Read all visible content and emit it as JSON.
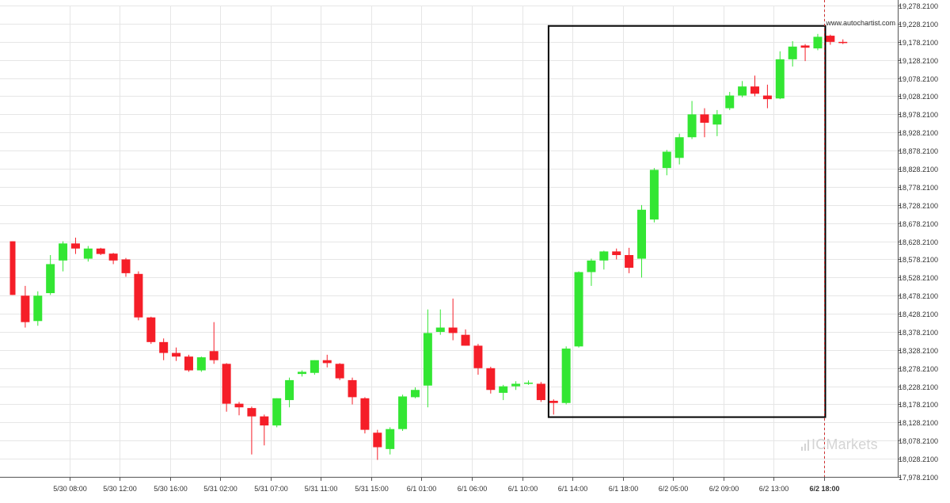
{
  "chart_data": {
    "type": "candlestick",
    "source_label": "www.autochartist.com",
    "brand_watermark": "ICMarkets",
    "colors": {
      "up": "#33e633",
      "down": "#f51e28",
      "pattern_box": "#000000",
      "grid": "#e6e6e6"
    },
    "grid": true,
    "y_axis": {
      "position": "right",
      "min": 17978.21,
      "max": 19278.21,
      "ticks": [
        "19,278.2100",
        "19,228.2100",
        "19,178.2100",
        "19,128.2100",
        "19,078.2100",
        "19,028.2100",
        "18,978.2100",
        "18,928.2100",
        "18,878.2100",
        "18,828.2100",
        "18,778.2100",
        "18,728.2100",
        "18,678.2100",
        "18,628.2100",
        "18,578.2100",
        "18,528.2100",
        "18,478.2100",
        "18,428.2100",
        "18,378.2100",
        "18,328.2100",
        "18,278.2100",
        "18,228.2100",
        "18,178.2100",
        "18,128.2100",
        "18,078.2100",
        "18,028.2100",
        "17,978.2100"
      ],
      "tick_values": [
        19278.21,
        19228.21,
        19178.21,
        19128.21,
        19078.21,
        19028.21,
        18978.21,
        18928.21,
        18878.21,
        18828.21,
        18778.21,
        18728.21,
        18678.21,
        18628.21,
        18578.21,
        18528.21,
        18478.21,
        18428.21,
        18378.21,
        18328.21,
        18278.21,
        18228.21,
        18178.21,
        18128.21,
        18078.21,
        18028.21,
        17978.21
      ]
    },
    "x_axis": {
      "ticks": [
        {
          "label": "5/30 08:00",
          "index": 4.5
        },
        {
          "label": "5/30 12:00",
          "index": 8.5
        },
        {
          "label": "5/30 16:00",
          "index": 12.5
        },
        {
          "label": "5/31 02:00",
          "index": 16.5
        },
        {
          "label": "5/31 07:00",
          "index": 20.5
        },
        {
          "label": "5/31 11:00",
          "index": 24.5
        },
        {
          "label": "5/31 15:00",
          "index": 28.5
        },
        {
          "label": "6/1 01:00",
          "index": 32.5
        },
        {
          "label": "6/1 06:00",
          "index": 36.5
        },
        {
          "label": "6/1 10:00",
          "index": 40.5
        },
        {
          "label": "6/1 14:00",
          "index": 44.5
        },
        {
          "label": "6/1 18:00",
          "index": 48.5
        },
        {
          "label": "6/2 05:00",
          "index": 52.5
        },
        {
          "label": "6/2 09:00",
          "index": 56.5
        },
        {
          "label": "6/2 13:00",
          "index": 60.5
        },
        {
          "label": "6/2 18:00",
          "index": 64.5,
          "bold": true
        }
      ]
    },
    "candles": [
      {
        "o": 18628,
        "h": 18628,
        "l": 18480,
        "c": 18480
      },
      {
        "o": 18478,
        "h": 18505,
        "l": 18390,
        "c": 18405
      },
      {
        "o": 18408,
        "h": 18490,
        "l": 18395,
        "c": 18478
      },
      {
        "o": 18485,
        "h": 18590,
        "l": 18480,
        "c": 18565
      },
      {
        "o": 18575,
        "h": 18628,
        "l": 18545,
        "c": 18622
      },
      {
        "o": 18622,
        "h": 18638,
        "l": 18593,
        "c": 18608
      },
      {
        "o": 18580,
        "h": 18615,
        "l": 18572,
        "c": 18608
      },
      {
        "o": 18608,
        "h": 18610,
        "l": 18590,
        "c": 18593
      },
      {
        "o": 18594,
        "h": 18596,
        "l": 18565,
        "c": 18575
      },
      {
        "o": 18578,
        "h": 18582,
        "l": 18530,
        "c": 18540
      },
      {
        "o": 18538,
        "h": 18545,
        "l": 18410,
        "c": 18418
      },
      {
        "o": 18418,
        "h": 18420,
        "l": 18345,
        "c": 18350
      },
      {
        "o": 18350,
        "h": 18360,
        "l": 18300,
        "c": 18320
      },
      {
        "o": 18320,
        "h": 18335,
        "l": 18298,
        "c": 18310
      },
      {
        "o": 18310,
        "h": 18315,
        "l": 18268,
        "c": 18272
      },
      {
        "o": 18272,
        "h": 18310,
        "l": 18268,
        "c": 18308
      },
      {
        "o": 18325,
        "h": 18405,
        "l": 18290,
        "c": 18300
      },
      {
        "o": 18290,
        "h": 18292,
        "l": 18158,
        "c": 18180
      },
      {
        "o": 18180,
        "h": 18185,
        "l": 18148,
        "c": 18170
      },
      {
        "o": 18168,
        "h": 18172,
        "l": 18040,
        "c": 18145
      },
      {
        "o": 18145,
        "h": 18150,
        "l": 18065,
        "c": 18120
      },
      {
        "o": 18120,
        "h": 18195,
        "l": 18115,
        "c": 18195
      },
      {
        "o": 18190,
        "h": 18252,
        "l": 18170,
        "c": 18245
      },
      {
        "o": 18262,
        "h": 18272,
        "l": 18255,
        "c": 18268
      },
      {
        "o": 18265,
        "h": 18300,
        "l": 18260,
        "c": 18300
      },
      {
        "o": 18300,
        "h": 18315,
        "l": 18280,
        "c": 18292
      },
      {
        "o": 18290,
        "h": 18292,
        "l": 18245,
        "c": 18250
      },
      {
        "o": 18245,
        "h": 18252,
        "l": 18178,
        "c": 18198
      },
      {
        "o": 18195,
        "h": 18198,
        "l": 18098,
        "c": 18108
      },
      {
        "o": 18100,
        "h": 18108,
        "l": 18025,
        "c": 18060
      },
      {
        "o": 18055,
        "h": 18115,
        "l": 18040,
        "c": 18110
      },
      {
        "o": 18110,
        "h": 18205,
        "l": 18105,
        "c": 18200
      },
      {
        "o": 18198,
        "h": 18225,
        "l": 18195,
        "c": 18218
      },
      {
        "o": 18230,
        "h": 18440,
        "l": 18170,
        "c": 18375
      },
      {
        "o": 18378,
        "h": 18440,
        "l": 18370,
        "c": 18390
      },
      {
        "o": 18390,
        "h": 18470,
        "l": 18355,
        "c": 18375
      },
      {
        "o": 18370,
        "h": 18385,
        "l": 18340,
        "c": 18340
      },
      {
        "o": 18340,
        "h": 18345,
        "l": 18260,
        "c": 18278
      },
      {
        "o": 18278,
        "h": 18282,
        "l": 18208,
        "c": 18218
      },
      {
        "o": 18210,
        "h": 18232,
        "l": 18190,
        "c": 18228
      },
      {
        "o": 18228,
        "h": 18242,
        "l": 18218,
        "c": 18235
      },
      {
        "o": 18236,
        "h": 18244,
        "l": 18232,
        "c": 18238
      },
      {
        "o": 18235,
        "h": 18240,
        "l": 18185,
        "c": 18190
      },
      {
        "o": 18188,
        "h": 18192,
        "l": 18150,
        "c": 18182
      },
      {
        "o": 18182,
        "h": 18338,
        "l": 18178,
        "c": 18332
      },
      {
        "o": 18338,
        "h": 18545,
        "l": 18335,
        "c": 18543
      },
      {
        "o": 18543,
        "h": 18580,
        "l": 18505,
        "c": 18575
      },
      {
        "o": 18575,
        "h": 18602,
        "l": 18550,
        "c": 18600
      },
      {
        "o": 18600,
        "h": 18608,
        "l": 18578,
        "c": 18590
      },
      {
        "o": 18590,
        "h": 18610,
        "l": 18540,
        "c": 18555
      },
      {
        "o": 18580,
        "h": 18728,
        "l": 18528,
        "c": 18715
      },
      {
        "o": 18688,
        "h": 18830,
        "l": 18680,
        "c": 18825
      },
      {
        "o": 18830,
        "h": 18880,
        "l": 18810,
        "c": 18875
      },
      {
        "o": 18858,
        "h": 18925,
        "l": 18840,
        "c": 18915
      },
      {
        "o": 18915,
        "h": 19015,
        "l": 18910,
        "c": 18978
      },
      {
        "o": 18978,
        "h": 18995,
        "l": 18915,
        "c": 18955
      },
      {
        "o": 18950,
        "h": 18990,
        "l": 18918,
        "c": 18978
      },
      {
        "o": 18995,
        "h": 19040,
        "l": 18990,
        "c": 19030
      },
      {
        "o": 19030,
        "h": 19070,
        "l": 19025,
        "c": 19055
      },
      {
        "o": 19055,
        "h": 19085,
        "l": 19028,
        "c": 19035
      },
      {
        "o": 19030,
        "h": 19060,
        "l": 18995,
        "c": 19020
      },
      {
        "o": 19022,
        "h": 19152,
        "l": 19020,
        "c": 19130
      },
      {
        "o": 19130,
        "h": 19180,
        "l": 19110,
        "c": 19165
      },
      {
        "o": 19168,
        "h": 19172,
        "l": 19125,
        "c": 19162
      },
      {
        "o": 19160,
        "h": 19200,
        "l": 19155,
        "c": 19192
      },
      {
        "o": 19195,
        "h": 19198,
        "l": 19170,
        "c": 19178
      },
      {
        "o": 19178,
        "h": 19185,
        "l": 19172,
        "c": 19175
      }
    ],
    "pattern_box": {
      "from_index": 42.6,
      "to_index": 64.6,
      "top": 19222,
      "bottom": 18143
    },
    "current_time_index": 64.5
  }
}
